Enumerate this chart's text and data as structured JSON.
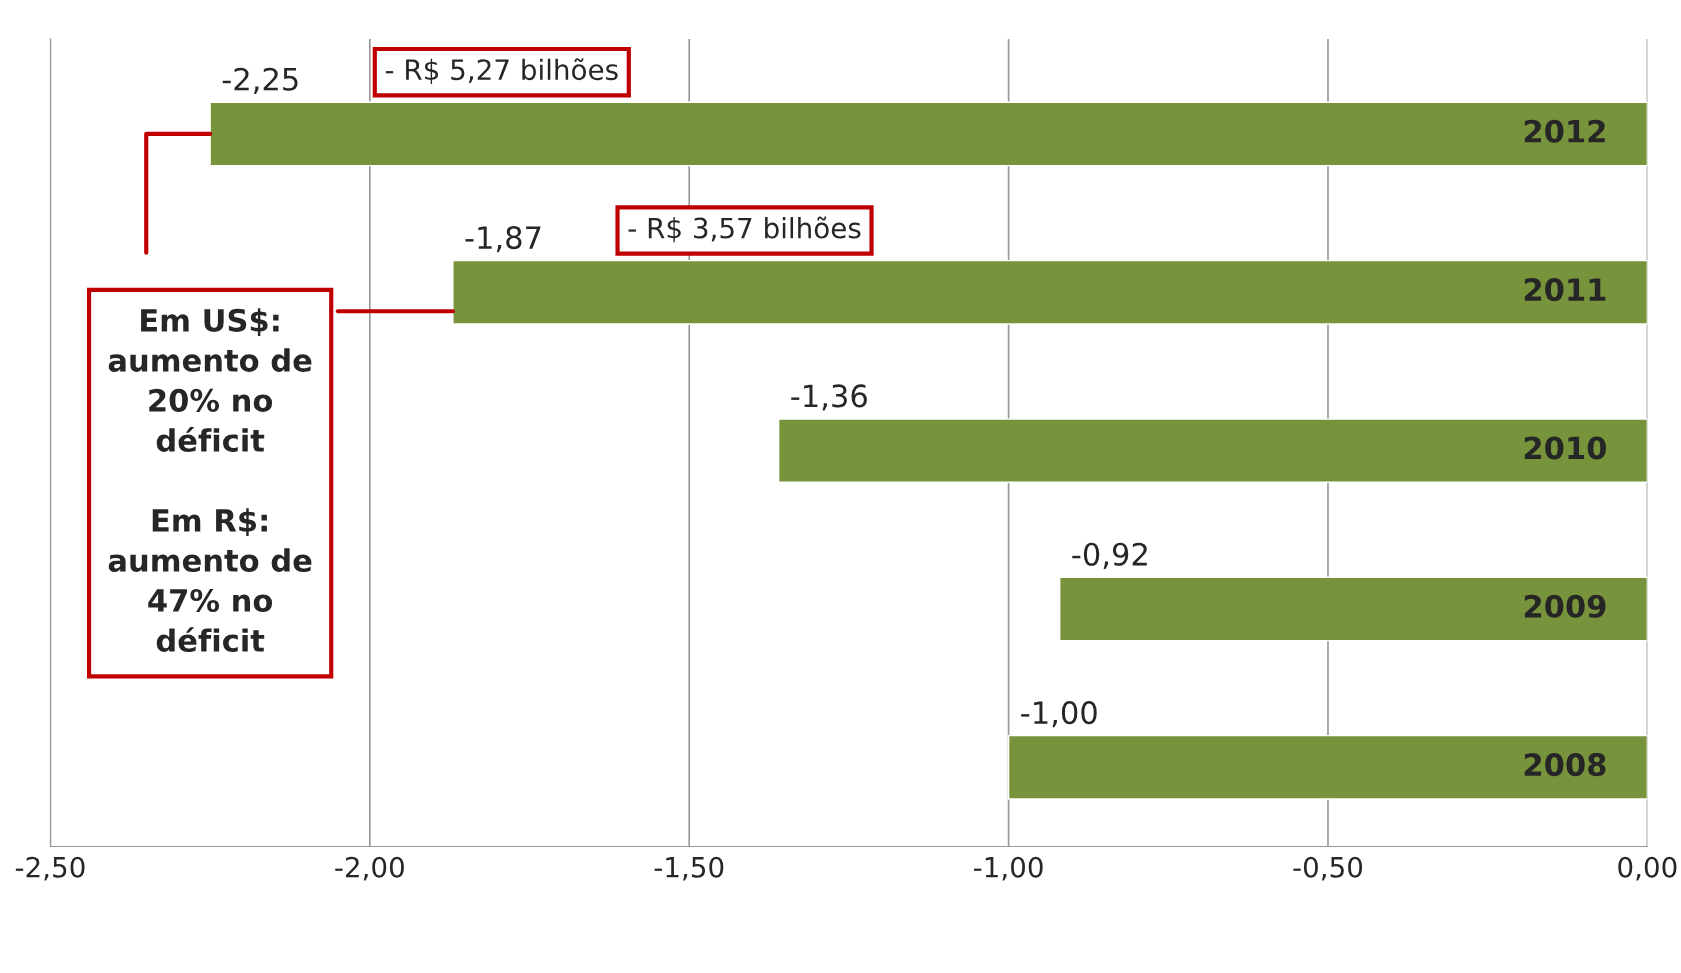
{
  "chart_data": {
    "type": "bar",
    "orientation": "horizontal",
    "categories": [
      "2012",
      "2011",
      "2010",
      "2009",
      "2008"
    ],
    "values": [
      -2.25,
      -1.87,
      -1.36,
      -0.92,
      -1.0
    ],
    "value_labels": [
      "-2,25",
      "-1,87",
      "-1,36",
      "-0,92",
      "-1,00"
    ],
    "color": "#77933c",
    "xlim": [
      -2.5,
      0
    ],
    "xticks": [
      {
        "value": -2.5,
        "label": "-2,50"
      },
      {
        "value": -2.0,
        "label": "-2,00"
      },
      {
        "value": -1.5,
        "label": "-1,50"
      },
      {
        "value": -1.0,
        "label": "-1,00"
      },
      {
        "value": -0.5,
        "label": "-0,50"
      },
      {
        "value": 0,
        "label": "0,00"
      }
    ],
    "grid": "x",
    "annotations": [
      "- R$ 5,27 bilhões",
      "- R$ 3,57 bilhões",
      "Em US$:\naumento de\n20% no\ndéficit\n\nEm R$:\naumento de\n47% no\ndéficit"
    ]
  }
}
